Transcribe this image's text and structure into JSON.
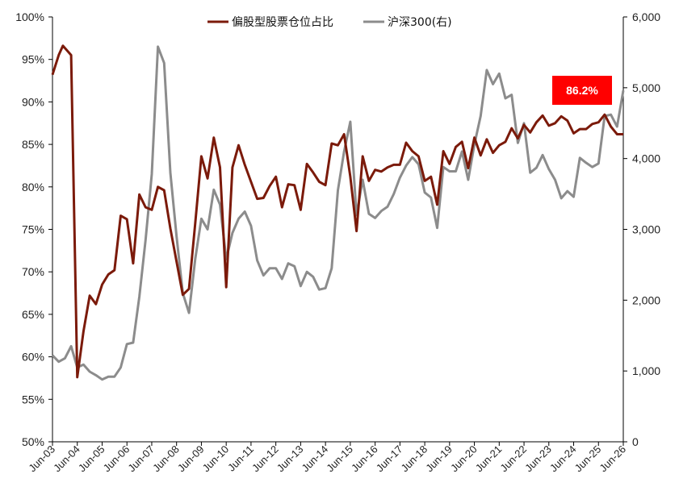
{
  "chart_data": {
    "type": "line",
    "title": "",
    "xlabel": "",
    "ylabel_left": "",
    "ylabel_right": "",
    "y_left_lim": [
      0.5,
      1.0
    ],
    "y_left_ticks": [
      "50%",
      "55%",
      "60%",
      "65%",
      "70%",
      "75%",
      "80%",
      "85%",
      "90%",
      "95%",
      "100%"
    ],
    "y_right_lim": [
      0,
      6000
    ],
    "y_right_ticks": [
      "0",
      "1,000",
      "2,000",
      "3,000",
      "4,000",
      "5,000",
      "6,000"
    ],
    "x_tick_labels": [
      "Jun-03",
      "Jun-04",
      "Jun-05",
      "Jun-06",
      "Jun-07",
      "Jun-08",
      "Jun-09",
      "Jun-10",
      "Jun-11",
      "Jun-12",
      "Jun-13",
      "Jun-14",
      "Jun-15",
      "Jun-16",
      "Jun-17",
      "Jun-18",
      "Jun-19",
      "Jun-20",
      "Jun-21",
      "Jun-22",
      "Jun-23",
      "Jun-24",
      "Jun-25",
      "Jun-26"
    ],
    "x_range": [
      2003.5,
      2026.5
    ],
    "grid": false,
    "legend_position": "top-center",
    "callout": {
      "text": "86.2%",
      "color": "#ff0000"
    },
    "series": [
      {
        "name": "偏股型股票仓位占比",
        "axis": "left",
        "color": "#7b1a0a",
        "points": [
          [
            2003.5,
            0.932
          ],
          [
            2003.75,
            0.955
          ],
          [
            2003.92,
            0.966
          ],
          [
            2004.25,
            0.955
          ],
          [
            2004.5,
            0.576
          ],
          [
            2004.75,
            0.63
          ],
          [
            2005.0,
            0.672
          ],
          [
            2005.25,
            0.662
          ],
          [
            2005.5,
            0.685
          ],
          [
            2005.75,
            0.697
          ],
          [
            2006.0,
            0.702
          ],
          [
            2006.25,
            0.766
          ],
          [
            2006.5,
            0.762
          ],
          [
            2006.75,
            0.71
          ],
          [
            2007.0,
            0.791
          ],
          [
            2007.25,
            0.776
          ],
          [
            2007.5,
            0.773
          ],
          [
            2007.75,
            0.8
          ],
          [
            2008.0,
            0.796
          ],
          [
            2008.25,
            0.751
          ],
          [
            2008.5,
            0.712
          ],
          [
            2008.75,
            0.673
          ],
          [
            2009.0,
            0.68
          ],
          [
            2009.25,
            0.757
          ],
          [
            2009.5,
            0.836
          ],
          [
            2009.75,
            0.81
          ],
          [
            2010.0,
            0.858
          ],
          [
            2010.25,
            0.823
          ],
          [
            2010.5,
            0.682
          ],
          [
            2010.75,
            0.823
          ],
          [
            2011.0,
            0.849
          ],
          [
            2011.25,
            0.826
          ],
          [
            2011.5,
            0.806
          ],
          [
            2011.75,
            0.786
          ],
          [
            2012.0,
            0.787
          ],
          [
            2012.25,
            0.801
          ],
          [
            2012.5,
            0.812
          ],
          [
            2012.75,
            0.776
          ],
          [
            2013.0,
            0.803
          ],
          [
            2013.25,
            0.802
          ],
          [
            2013.5,
            0.773
          ],
          [
            2013.75,
            0.827
          ],
          [
            2014.0,
            0.817
          ],
          [
            2014.25,
            0.806
          ],
          [
            2014.5,
            0.802
          ],
          [
            2014.75,
            0.851
          ],
          [
            2015.0,
            0.849
          ],
          [
            2015.25,
            0.862
          ],
          [
            2015.5,
            0.812
          ],
          [
            2015.75,
            0.748
          ],
          [
            2016.0,
            0.836
          ],
          [
            2016.25,
            0.807
          ],
          [
            2016.5,
            0.82
          ],
          [
            2016.75,
            0.818
          ],
          [
            2017.0,
            0.823
          ],
          [
            2017.25,
            0.826
          ],
          [
            2017.5,
            0.826
          ],
          [
            2017.75,
            0.852
          ],
          [
            2018.0,
            0.842
          ],
          [
            2018.25,
            0.836
          ],
          [
            2018.5,
            0.807
          ],
          [
            2018.75,
            0.812
          ],
          [
            2019.0,
            0.779
          ],
          [
            2019.25,
            0.842
          ],
          [
            2019.5,
            0.827
          ],
          [
            2019.75,
            0.847
          ],
          [
            2020.0,
            0.853
          ],
          [
            2020.25,
            0.822
          ],
          [
            2020.5,
            0.858
          ],
          [
            2020.75,
            0.837
          ],
          [
            2021.0,
            0.856
          ],
          [
            2021.25,
            0.84
          ],
          [
            2021.5,
            0.849
          ],
          [
            2021.75,
            0.853
          ],
          [
            2022.0,
            0.869
          ],
          [
            2022.25,
            0.857
          ],
          [
            2022.5,
            0.873
          ],
          [
            2022.75,
            0.864
          ],
          [
            2023.0,
            0.876
          ],
          [
            2023.25,
            0.884
          ],
          [
            2023.5,
            0.872
          ],
          [
            2023.75,
            0.875
          ],
          [
            2024.0,
            0.883
          ],
          [
            2024.25,
            0.878
          ],
          [
            2024.5,
            0.863
          ],
          [
            2024.75,
            0.868
          ],
          [
            2025.0,
            0.868
          ],
          [
            2025.25,
            0.874
          ],
          [
            2025.5,
            0.876
          ],
          [
            2025.75,
            0.885
          ],
          [
            2026.0,
            0.871
          ],
          [
            2026.25,
            0.862
          ],
          [
            2026.5,
            0.862
          ]
        ]
      },
      {
        "name": "沪深300(右)",
        "axis": "right",
        "color": "#8c8c8c",
        "points": [
          [
            2003.5,
            1220
          ],
          [
            2003.75,
            1130
          ],
          [
            2004.0,
            1180
          ],
          [
            2004.25,
            1350
          ],
          [
            2004.5,
            1050
          ],
          [
            2004.75,
            1090
          ],
          [
            2005.0,
            990
          ],
          [
            2005.25,
            940
          ],
          [
            2005.5,
            880
          ],
          [
            2005.75,
            920
          ],
          [
            2006.0,
            920
          ],
          [
            2006.25,
            1050
          ],
          [
            2006.5,
            1380
          ],
          [
            2006.75,
            1400
          ],
          [
            2007.0,
            2050
          ],
          [
            2007.25,
            2850
          ],
          [
            2007.5,
            3780
          ],
          [
            2007.75,
            5580
          ],
          [
            2008.0,
            5350
          ],
          [
            2008.25,
            3800
          ],
          [
            2008.5,
            2900
          ],
          [
            2008.75,
            2100
          ],
          [
            2009.0,
            1820
          ],
          [
            2009.25,
            2580
          ],
          [
            2009.5,
            3150
          ],
          [
            2009.75,
            3000
          ],
          [
            2010.0,
            3560
          ],
          [
            2010.25,
            3350
          ],
          [
            2010.5,
            2580
          ],
          [
            2010.75,
            2950
          ],
          [
            2011.0,
            3150
          ],
          [
            2011.25,
            3250
          ],
          [
            2011.5,
            3050
          ],
          [
            2011.75,
            2560
          ],
          [
            2012.0,
            2350
          ],
          [
            2012.25,
            2450
          ],
          [
            2012.5,
            2450
          ],
          [
            2012.75,
            2300
          ],
          [
            2013.0,
            2520
          ],
          [
            2013.25,
            2480
          ],
          [
            2013.5,
            2200
          ],
          [
            2013.75,
            2400
          ],
          [
            2014.0,
            2330
          ],
          [
            2014.25,
            2150
          ],
          [
            2014.5,
            2170
          ],
          [
            2014.75,
            2450
          ],
          [
            2015.0,
            3550
          ],
          [
            2015.25,
            4100
          ],
          [
            2015.5,
            4520
          ],
          [
            2015.75,
            3200
          ],
          [
            2016.0,
            3700
          ],
          [
            2016.25,
            3220
          ],
          [
            2016.5,
            3160
          ],
          [
            2016.75,
            3260
          ],
          [
            2017.0,
            3320
          ],
          [
            2017.25,
            3500
          ],
          [
            2017.5,
            3730
          ],
          [
            2017.75,
            3900
          ],
          [
            2018.0,
            4020
          ],
          [
            2018.25,
            3920
          ],
          [
            2018.5,
            3520
          ],
          [
            2018.75,
            3450
          ],
          [
            2019.0,
            3020
          ],
          [
            2019.25,
            3880
          ],
          [
            2019.5,
            3820
          ],
          [
            2019.75,
            3820
          ],
          [
            2020.0,
            4100
          ],
          [
            2020.25,
            3700
          ],
          [
            2020.5,
            4200
          ],
          [
            2020.75,
            4600
          ],
          [
            2021.0,
            5250
          ],
          [
            2021.25,
            5050
          ],
          [
            2021.5,
            5200
          ],
          [
            2021.75,
            4850
          ],
          [
            2022.0,
            4900
          ],
          [
            2022.25,
            4220
          ],
          [
            2022.5,
            4500
          ],
          [
            2022.75,
            3800
          ],
          [
            2023.0,
            3870
          ],
          [
            2023.25,
            4050
          ],
          [
            2023.5,
            3850
          ],
          [
            2023.75,
            3700
          ],
          [
            2024.0,
            3440
          ],
          [
            2024.25,
            3540
          ],
          [
            2024.5,
            3460
          ],
          [
            2024.75,
            4010
          ],
          [
            2025.0,
            3940
          ],
          [
            2025.25,
            3880
          ],
          [
            2025.5,
            3930
          ],
          [
            2025.75,
            4600
          ],
          [
            2026.0,
            4620
          ],
          [
            2026.25,
            4450
          ],
          [
            2026.5,
            4960
          ]
        ]
      }
    ]
  }
}
